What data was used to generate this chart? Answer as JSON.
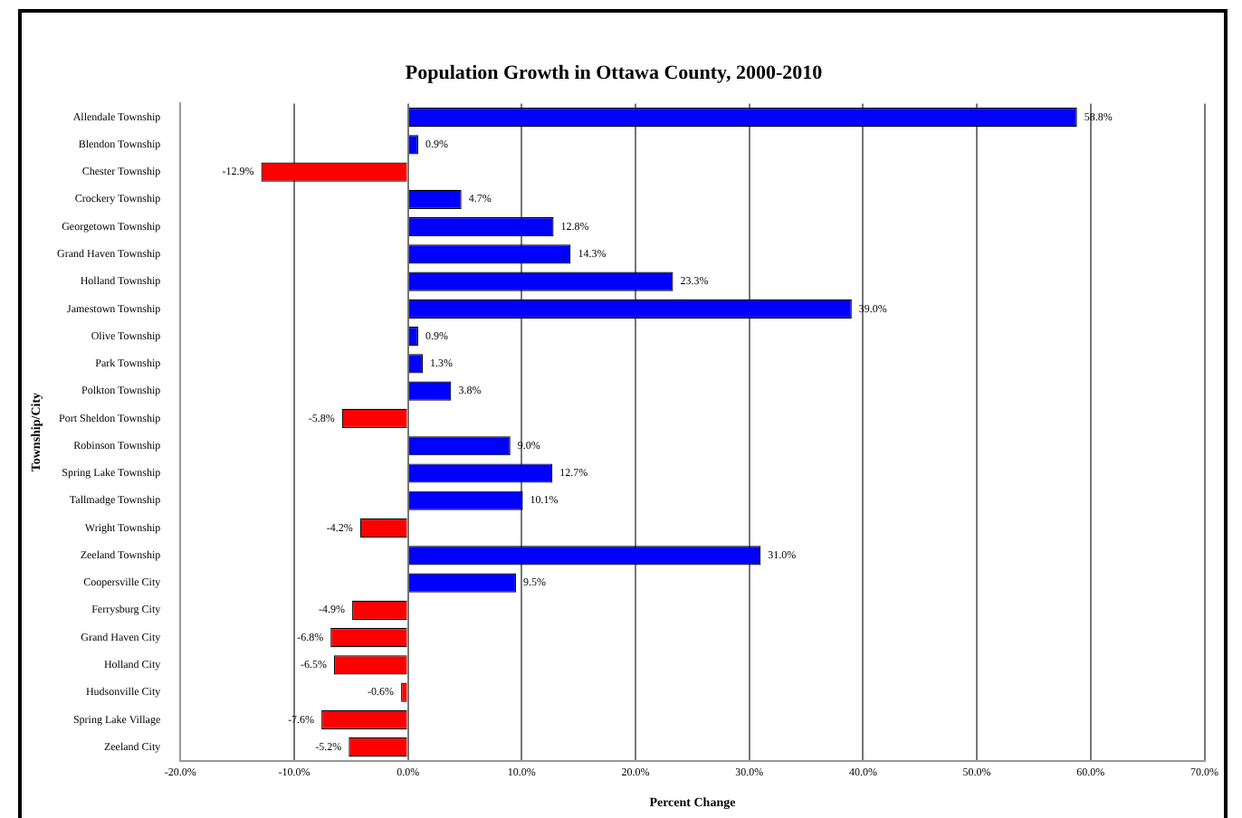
{
  "chart_data": {
    "type": "bar",
    "orientation": "horizontal",
    "title": "Population Growth in Ottawa County, 2000-2010",
    "xlabel": "Percent Change",
    "ylabel": "Township/City",
    "categories": [
      "Allendale Township",
      "Blendon Township",
      "Chester Township",
      "Crockery Township",
      "Georgetown Township",
      "Grand Haven Township",
      "Holland Township",
      "Jamestown Township",
      "Olive Township",
      "Park Township",
      "Polkton Township",
      "Port Sheldon Township",
      "Robinson Township",
      "Spring Lake Township",
      "Tallmadge Township",
      "Wright Township",
      "Zeeland Township",
      "Coopersville City",
      "Ferrysburg City",
      "Grand Haven City",
      "Holland City",
      "Hudsonville City",
      "Spring Lake Village",
      "Zeeland City"
    ],
    "values": [
      58.8,
      0.9,
      -12.9,
      4.7,
      12.8,
      14.3,
      23.3,
      39.0,
      0.9,
      1.3,
      3.8,
      -5.8,
      9.0,
      12.7,
      10.1,
      -4.2,
      31.0,
      9.5,
      -4.9,
      -6.8,
      -6.5,
      -0.6,
      -7.6,
      -5.2
    ],
    "value_labels": [
      "58.8%",
      "0.9%",
      "-12.9%",
      "4.7%",
      "12.8%",
      "14.3%",
      "23.3%",
      "39.0%",
      "0.9%",
      "1.3%",
      "3.8%",
      "-5.8%",
      "9.0%",
      "12.7%",
      "10.1%",
      "-4.2%",
      "31.0%",
      "9.5%",
      "-4.9%",
      "-6.8%",
      "-6.5%",
      "-0.6%",
      "-7.6%",
      "-5.2%"
    ],
    "colors": [
      "#0000ff",
      "#0000ff",
      "#ff0000",
      "#0000ff",
      "#0000ff",
      "#0000ff",
      "#0000ff",
      "#0000ff",
      "#0000ff",
      "#0000ff",
      "#0000ff",
      "#ff0000",
      "#0000ff",
      "#0000ff",
      "#0000ff",
      "#ff0000",
      "#0000ff",
      "#0000ff",
      "#ff0000",
      "#ff0000",
      "#ff0000",
      "#ff0000",
      "#ff0000",
      "#ff0000"
    ],
    "xlim": [
      -20,
      70
    ],
    "xticks": [
      {
        "value": -20,
        "label": "-20.0%"
      },
      {
        "value": -10,
        "label": "-10.0%"
      },
      {
        "value": 0,
        "label": "0.0%"
      },
      {
        "value": 10,
        "label": "10.0%"
      },
      {
        "value": 20,
        "label": "20.0%"
      },
      {
        "value": 30,
        "label": "30.0%"
      },
      {
        "value": 40,
        "label": "40.0%"
      },
      {
        "value": 50,
        "label": "50.0%"
      },
      {
        "value": 60,
        "label": "60.0%"
      },
      {
        "value": 70,
        "label": "70.0%"
      }
    ],
    "grid": "x",
    "legend": false
  }
}
